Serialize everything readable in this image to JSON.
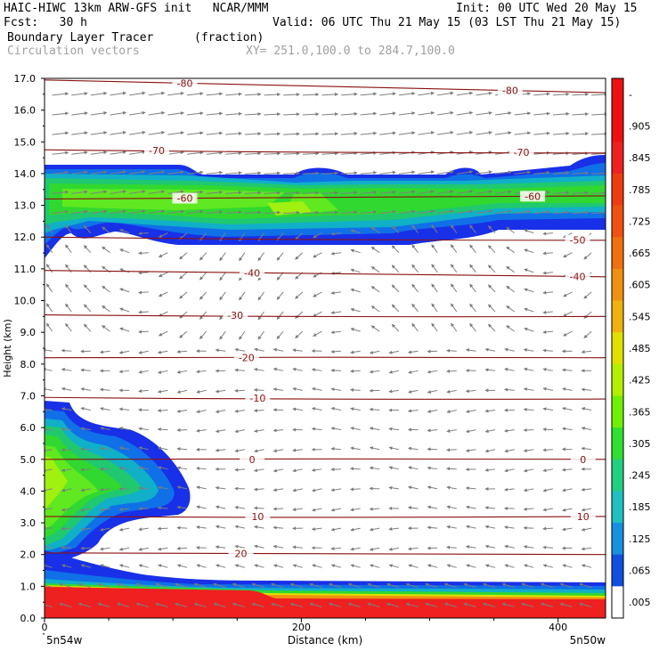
{
  "header": {
    "line1_left": "HAIC-HIWC 13km ARW-GFS init   NCAR/MMM",
    "line1_right": "Init: 00 UTC Wed 20 May 15",
    "line2_left": "Fcst:   30 h",
    "line2_right": "Valid: 06 UTC Thu 21 May 15 (03 LST Thu 21 May 15)",
    "field_name": "Boundary Layer Tracer",
    "field_units": "(fraction)",
    "overlay_name": "Circulation vectors",
    "xy_range": "XY= 251.0,100.0 to 284.7,100.0"
  },
  "chart_data": {
    "type": "heatmap",
    "title": "Boundary Layer Tracer",
    "units": "(fraction)",
    "xlabel": "Distance (km)",
    "ylabel": "Height (km)",
    "xlim": [
      0,
      437
    ],
    "ylim": [
      0,
      17
    ],
    "x_ticks": [
      "0",
      "200",
      "400"
    ],
    "y_ticks": [
      "0.0",
      "1.0",
      "2.0",
      "3.0",
      "4.0",
      "5.0",
      "6.0",
      "7.0",
      "8.0",
      "9.0",
      "10.0",
      "11.0",
      "12.0",
      "13.0",
      "14.0",
      "15.0",
      "16.0",
      "17.0"
    ],
    "x_endpoint_labels": {
      "left": "5n54w",
      "right": "5n50w"
    },
    "colorbar": {
      "labels": [
        "-",
        ".905",
        ".845",
        ".785",
        ".725",
        ".665",
        ".605",
        ".545",
        ".485",
        ".425",
        ".365",
        ".305",
        ".245",
        ".185",
        ".125",
        ".065",
        ".005"
      ],
      "colors": [
        "#ee1010",
        "#ee1010",
        "#ee2020",
        "#ee3c10",
        "#f05010",
        "#f07010",
        "#f09010",
        "#f0b010",
        "#e0e000",
        "#b0f000",
        "#70f000",
        "#30e030",
        "#20d080",
        "#20c0c0",
        "#1890e0",
        "#1050e0",
        "#ffffff"
      ]
    },
    "temperature_contours": [
      {
        "label": "-80",
        "height_left": 16.95,
        "height_right": 16.55
      },
      {
        "label": "-70",
        "height_left": 14.75,
        "height_right": 14.65
      },
      {
        "label": "-60",
        "height_left": 13.2,
        "height_right": 13.3
      },
      {
        "label": "-50",
        "height_left": 12.0,
        "height_right": 11.9
      },
      {
        "label": "-40",
        "height_left": 10.95,
        "height_right": 10.75
      },
      {
        "label": "-30",
        "height_left": 9.55,
        "height_right": 9.5
      },
      {
        "label": "-20",
        "height_left": 8.2,
        "height_right": 8.2
      },
      {
        "label": "-10",
        "height_left": 6.95,
        "height_right": 6.9
      },
      {
        "label": "0",
        "height_left": 5.0,
        "height_right": 5.0
      },
      {
        "label": "10",
        "height_left": 3.2,
        "height_right": 3.2
      },
      {
        "label": "20",
        "height_left": 2.05,
        "height_right": 2.0
      }
    ],
    "vectors": "circulation vectors",
    "grid": false
  }
}
